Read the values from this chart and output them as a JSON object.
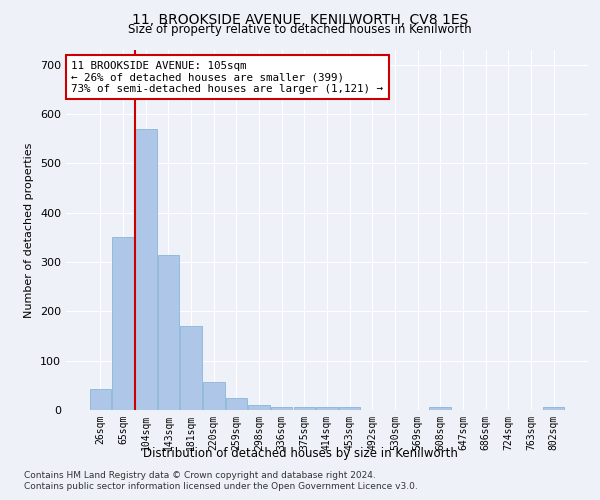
{
  "title": "11, BROOKSIDE AVENUE, KENILWORTH, CV8 1ES",
  "subtitle": "Size of property relative to detached houses in Kenilworth",
  "xlabel": "Distribution of detached houses by size in Kenilworth",
  "ylabel": "Number of detached properties",
  "categories": [
    "26sqm",
    "65sqm",
    "104sqm",
    "143sqm",
    "181sqm",
    "220sqm",
    "259sqm",
    "298sqm",
    "336sqm",
    "375sqm",
    "414sqm",
    "453sqm",
    "492sqm",
    "530sqm",
    "569sqm",
    "608sqm",
    "647sqm",
    "686sqm",
    "724sqm",
    "763sqm",
    "802sqm"
  ],
  "values": [
    42,
    350,
    570,
    315,
    170,
    57,
    25,
    10,
    7,
    6,
    6,
    6,
    0,
    0,
    0,
    7,
    0,
    0,
    0,
    0,
    7
  ],
  "bar_color": "#aec6e8",
  "bar_edge_color": "#7aafd4",
  "property_line_color": "#cc0000",
  "annotation_text": "11 BROOKSIDE AVENUE: 105sqm\n← 26% of detached houses are smaller (399)\n73% of semi-detached houses are larger (1,121) →",
  "annotation_box_color": "#ffffff",
  "annotation_box_edge_color": "#cc0000",
  "background_color": "#eef2f8",
  "grid_color": "#ffffff",
  "ylim": [
    0,
    730
  ],
  "yticks": [
    0,
    100,
    200,
    300,
    400,
    500,
    600,
    700
  ],
  "footer1": "Contains HM Land Registry data © Crown copyright and database right 2024.",
  "footer2": "Contains public sector information licensed under the Open Government Licence v3.0."
}
